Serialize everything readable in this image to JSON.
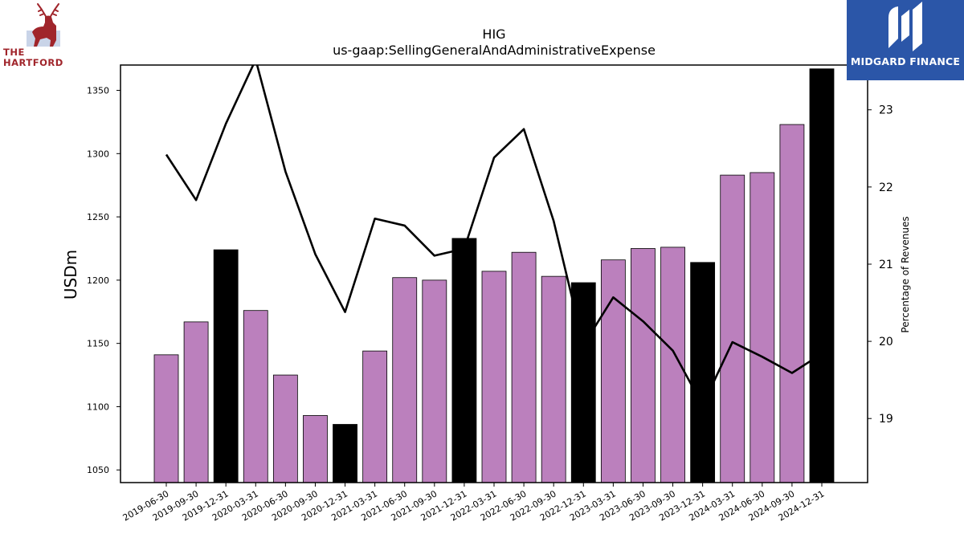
{
  "logos": {
    "left": {
      "line1": "THE",
      "line2": "HARTFORD",
      "icon": "stag-icon"
    },
    "right": {
      "name": "MIDGARD FINANCE",
      "icon": "midgard-m-icon",
      "bg_color": "#2b56a8"
    }
  },
  "chart_data": {
    "type": "bar",
    "title": "HIG",
    "subtitle": "us-gaap:SellingGeneralAndAdministrativeExpense",
    "ylabel": "USDm",
    "y2label": "Percentage of Revenues",
    "ylim": [
      1040,
      1370
    ],
    "y2lim": [
      18.17,
      23.58
    ],
    "yticks": [
      1050,
      1100,
      1150,
      1200,
      1250,
      1300,
      1350
    ],
    "y2ticks": [
      19,
      20,
      21,
      22,
      23
    ],
    "categories": [
      "2019-06-30",
      "2019-09-30",
      "2019-12-31",
      "2020-03-31",
      "2020-06-30",
      "2020-09-30",
      "2020-12-31",
      "2021-03-31",
      "2021-06-30",
      "2021-09-30",
      "2021-12-31",
      "2022-03-31",
      "2022-06-30",
      "2022-09-30",
      "2022-12-31",
      "2023-03-31",
      "2023-06-30",
      "2023-09-30",
      "2023-12-31",
      "2024-03-31",
      "2024-06-30",
      "2024-09-30",
      "2024-12-31"
    ],
    "series": [
      {
        "type": "bar",
        "axis": "left",
        "values": [
          1141,
          1167,
          1224,
          1176,
          1125,
          1093,
          1086,
          1144,
          1202,
          1200,
          1233,
          1207,
          1222,
          1203,
          1198,
          1216,
          1225,
          1226,
          1214,
          1283,
          1285,
          1323,
          1367
        ],
        "colors": [
          "#bb80bd",
          "#bb80bd",
          "#000000",
          "#bb80bd",
          "#bb80bd",
          "#bb80bd",
          "#000000",
          "#bb80bd",
          "#bb80bd",
          "#bb80bd",
          "#000000",
          "#bb80bd",
          "#bb80bd",
          "#bb80bd",
          "#000000",
          "#bb80bd",
          "#bb80bd",
          "#bb80bd",
          "#000000",
          "#bb80bd",
          "#bb80bd",
          "#bb80bd",
          "#000000"
        ]
      },
      {
        "type": "line",
        "axis": "right",
        "color": "#000000",
        "values": [
          22.42,
          21.83,
          22.82,
          23.65,
          22.2,
          21.13,
          20.38,
          21.59,
          21.5,
          21.11,
          21.2,
          22.38,
          22.75,
          21.56,
          19.95,
          20.57,
          20.26,
          19.88,
          19.17,
          19.99,
          19.8,
          19.59,
          19.84
        ]
      }
    ],
    "grid": false
  }
}
